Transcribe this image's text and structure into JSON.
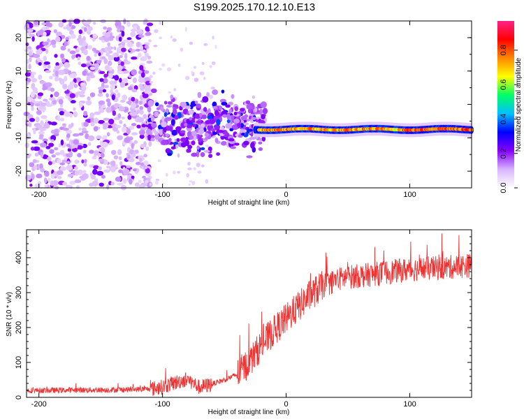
{
  "title": "S199.2025.170.12.10.E13",
  "chart_data": [
    {
      "type": "heatmap",
      "xlabel": "Height of straight line (km)",
      "ylabel": "Frequency (Hz)",
      "xlim": [
        -210,
        150
      ],
      "ylim": [
        -25,
        25
      ],
      "xticks": [
        "-200",
        "-100",
        "0",
        "100"
      ],
      "yticks": [
        "-20",
        "-10",
        "0",
        "10",
        "20"
      ],
      "grid": false,
      "colorbar": {
        "label": "Normalized spectral amplitude",
        "range": [
          0.0,
          0.97
        ],
        "ticks": [
          "0.0",
          "0.2",
          "0.4",
          "0.6",
          "0.8"
        ],
        "colors": [
          "#ffffff",
          "#d8b4ff",
          "#8800ff",
          "#0000ff",
          "#00bfff",
          "#00ff66",
          "#ffff00",
          "#ff8800",
          "#ff0000",
          "#ff2288"
        ]
      },
      "features": [
        {
          "region": "scattered noise",
          "x_range": [
            -210,
            -110
          ],
          "y_range": [
            -25,
            25
          ],
          "amplitude": 0.1
        },
        {
          "region": "transition clusters",
          "x_range": [
            -110,
            -20
          ],
          "y_range": [
            -17,
            1
          ],
          "amplitude": 0.3
        },
        {
          "region": "narrow band",
          "x_range": [
            -25,
            150
          ],
          "y_center": -7.5,
          "amplitude": 0.85
        }
      ]
    },
    {
      "type": "line",
      "xlabel": "Height of straight line (km)",
      "ylabel": "SNR (10 * v/v)",
      "xlim": [
        -210,
        150
      ],
      "ylim": [
        0,
        480
      ],
      "xticks": [
        "-200",
        "-100",
        "0",
        "100"
      ],
      "yticks": [
        "0",
        "100",
        "200",
        "300",
        "400"
      ],
      "grid": false,
      "color": "#ee3333",
      "series": [
        {
          "x": [
            -210,
            -190,
            -170,
            -150,
            -130,
            -110,
            -100,
            -90,
            -80,
            -70,
            -60,
            -50,
            -40,
            -30,
            -20,
            -10,
            0,
            10,
            20,
            30,
            40,
            50,
            60,
            70,
            80,
            90,
            100,
            110,
            120,
            130,
            140,
            150
          ],
          "values": [
            20,
            20,
            21,
            21,
            22,
            24,
            30,
            42,
            52,
            28,
            38,
            50,
            65,
            100,
            150,
            190,
            225,
            260,
            295,
            320,
            335,
            345,
            348,
            352,
            358,
            362,
            366,
            368,
            370,
            372,
            375,
            378
          ]
        }
      ]
    }
  ]
}
